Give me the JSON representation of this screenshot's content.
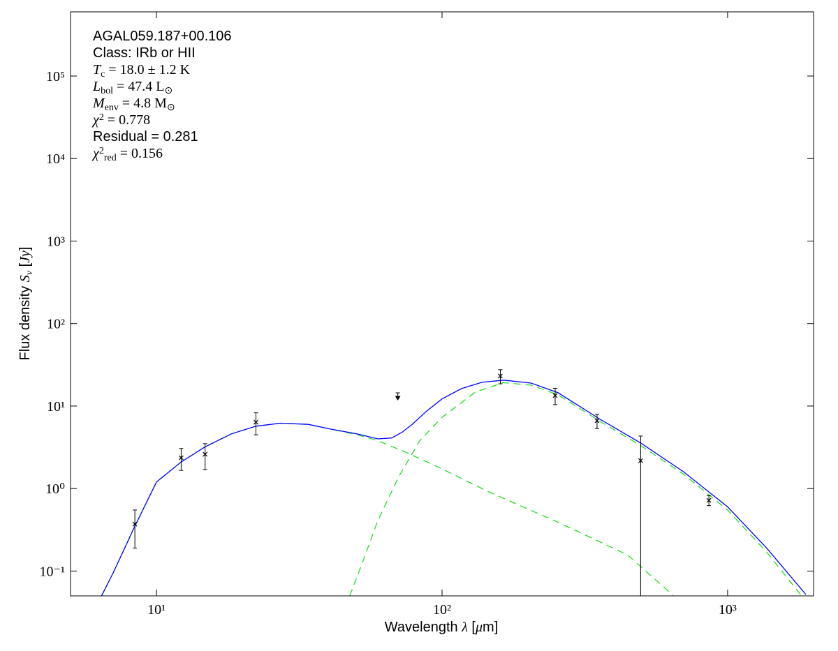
{
  "chart_data": {
    "type": "sed",
    "xscale": "log",
    "yscale": "log",
    "xlim": [
      5,
      2000
    ],
    "ylim": [
      0.05,
      600000
    ],
    "xticks": [
      {
        "value": 10,
        "label": "10¹"
      },
      {
        "value": 100,
        "label": "10²"
      },
      {
        "value": 1000,
        "label": "10³"
      }
    ],
    "yticks": [
      {
        "value": 0.1,
        "label": "10⁻¹"
      },
      {
        "value": 1,
        "label": "10⁰"
      },
      {
        "value": 10,
        "label": "10¹"
      },
      {
        "value": 100,
        "label": "10²"
      },
      {
        "value": 1000,
        "label": "10³"
      },
      {
        "value": 10000,
        "label": "10⁴"
      },
      {
        "value": 100000,
        "label": "10⁵"
      }
    ],
    "xlabel": [
      {
        "text": "Wavelength "
      },
      {
        "text": "λ",
        "math": true
      },
      {
        "text": " ["
      },
      {
        "text": "μ",
        "math": true
      },
      {
        "text": "m]"
      }
    ],
    "ylabel": [
      {
        "text": "Flux density "
      },
      {
        "text": "S",
        "math": true
      },
      {
        "text": "ν",
        "math": true,
        "sub": true
      },
      {
        "text": " ["
      },
      {
        "text": "Jy",
        "math": true
      },
      {
        "text": "]"
      }
    ],
    "annotations": [
      [
        {
          "text": "AGAL059.187+00.106"
        }
      ],
      [
        {
          "text": "Class: IRb or HII"
        }
      ],
      [
        {
          "text": "T",
          "math": true
        },
        {
          "text": "c",
          "sub": true,
          "serif": true
        },
        {
          "text": " = 18.0 ± 1.2 K",
          "serif": true
        }
      ],
      [
        {
          "text": "L",
          "math": true
        },
        {
          "text": "bol",
          "sub": true,
          "serif": true
        },
        {
          "text": " = 47.4 L",
          "serif": true
        },
        {
          "text": "⊙",
          "sub": true,
          "serif": true
        }
      ],
      [
        {
          "text": "M",
          "math": true
        },
        {
          "text": "env",
          "sub": true,
          "serif": true
        },
        {
          "text": " = 4.8 M",
          "serif": true
        },
        {
          "text": "⊙",
          "sub": true,
          "serif": true
        }
      ],
      [
        {
          "text": "χ",
          "math": true
        },
        {
          "text": "2",
          "sup": true,
          "serif": true
        },
        {
          "text": " = 0.778",
          "serif": true
        }
      ],
      [
        {
          "text": "Residual = 0.281"
        }
      ],
      [
        {
          "text": "χ",
          "math": true
        },
        {
          "text": "2",
          "sup": true,
          "serif": true
        },
        {
          "text": "red",
          "sub": true,
          "serif": true
        },
        {
          "text": " = 0.156",
          "serif": true
        }
      ]
    ],
    "points": {
      "color": "#000000",
      "x": [
        8.4,
        12.2,
        14.8,
        22.3,
        160,
        249,
        349,
        496,
        860
      ],
      "values": [
        0.37,
        2.36,
        2.6,
        6.38,
        23.1,
        13.4,
        6.64,
        2.18,
        0.72
      ],
      "errors": [
        0.18,
        0.7,
        0.9,
        1.9,
        4.5,
        3,
        1.3,
        2.15,
        0.1
      ]
    },
    "upper_limits": {
      "color": "#000000",
      "x": [
        70
      ],
      "values": [
        13.9
      ]
    },
    "models": [
      {
        "color": "#22dd22",
        "dashed": true,
        "x": [
          6.42,
          7.06,
          8.4,
          10,
          12.2,
          14.8,
          18.3,
          22.3,
          27.2,
          34,
          40.2,
          50.3,
          59.6,
          74.5,
          100,
          146,
          255,
          446,
          644
        ],
        "values": [
          0.05,
          0.096,
          0.35,
          1.2,
          2.1,
          3.2,
          4.6,
          5.7,
          6.2,
          6.0,
          5.3,
          4.5,
          3.8,
          2.76,
          1.73,
          0.91,
          0.39,
          0.157,
          0.051
        ]
      },
      {
        "color": "#22dd22",
        "dashed": true,
        "x": [
          47.5,
          53.2,
          59.6,
          70.5,
          83.4,
          100,
          131,
          164,
          205,
          255,
          358,
          494,
          700,
          1000,
          1370,
          1800
        ],
        "values": [
          0.05,
          0.14,
          0.41,
          1.39,
          3.77,
          7.3,
          14.8,
          19.2,
          17.9,
          13.7,
          6.5,
          3.35,
          1.5,
          0.55,
          0.17,
          0.052
        ]
      },
      {
        "color": "#0000ff",
        "dashed": false,
        "x": [
          6.42,
          7.06,
          8.4,
          10,
          12.2,
          14.8,
          18.3,
          22.3,
          27.2,
          34,
          40.2,
          50.3,
          59.6,
          66.6,
          72.4,
          78.6,
          88,
          100,
          117,
          138,
          164,
          205,
          255,
          358,
          494,
          700,
          1000,
          1370,
          1880
        ],
        "values": [
          0.05,
          0.096,
          0.35,
          1.2,
          2.1,
          3.2,
          4.6,
          5.7,
          6.2,
          6.0,
          5.3,
          4.6,
          4.0,
          4.1,
          4.8,
          6.0,
          8.6,
          12.2,
          16.3,
          19.4,
          20.6,
          19.0,
          14.5,
          6.9,
          3.6,
          1.6,
          0.6,
          0.19,
          0.052
        ]
      }
    ]
  }
}
